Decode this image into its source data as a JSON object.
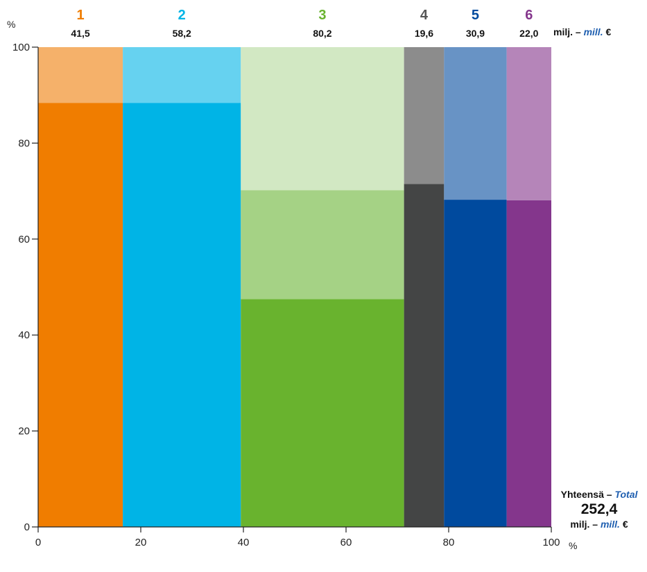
{
  "chart_data": {
    "type": "mekko",
    "x_unit": "%",
    "y_unit": "%",
    "xlim": [
      0,
      100
    ],
    "ylim": [
      0,
      100
    ],
    "x_ticks": [
      0,
      20,
      40,
      60,
      80,
      100
    ],
    "y_ticks": [
      0,
      20,
      40,
      60,
      80,
      100
    ],
    "value_unit_prefix": "milj. – ",
    "value_unit_italic": "mill.",
    "value_unit_suffix": " €",
    "categories": [
      {
        "label": "1",
        "value": 41.5,
        "value_label": "41,5",
        "x_start": 0,
        "x_end": 16.5,
        "label_color": "#f07d00",
        "segments": [
          {
            "top": 88.4,
            "color": "#f07d00"
          },
          {
            "top": 100,
            "color": "#f5b16a"
          }
        ]
      },
      {
        "label": "2",
        "value": 58.2,
        "value_label": "58,2",
        "x_start": 16.5,
        "x_end": 39.5,
        "label_color": "#00b4e6",
        "segments": [
          {
            "top": 88.4,
            "color": "#00b4e6"
          },
          {
            "top": 100,
            "color": "#66d2f0"
          }
        ]
      },
      {
        "label": "3",
        "value": 80.2,
        "value_label": "80,2",
        "x_start": 39.5,
        "x_end": 71.3,
        "label_color": "#69b32e",
        "segments": [
          {
            "top": 47.5,
            "color": "#69b32e"
          },
          {
            "top": 70.2,
            "color": "#a5d285"
          },
          {
            "top": 100,
            "color": "#d2e8c3"
          }
        ]
      },
      {
        "label": "4",
        "value": 19.6,
        "value_label": "19,6",
        "x_start": 71.3,
        "x_end": 79.1,
        "label_color": "#555555",
        "segments": [
          {
            "top": 71.5,
            "color": "#444545"
          },
          {
            "top": 100,
            "color": "#8c8c8c"
          }
        ]
      },
      {
        "label": "5",
        "value": 30.9,
        "value_label": "30,9",
        "x_start": 79.1,
        "x_end": 91.3,
        "label_color": "#004a9e",
        "segments": [
          {
            "top": 68.2,
            "color": "#004a9e"
          },
          {
            "top": 100,
            "color": "#6893c5"
          }
        ]
      },
      {
        "label": "6",
        "value": 22.0,
        "value_label": "22,0",
        "x_start": 91.3,
        "x_end": 100,
        "label_color": "#84368c",
        "segments": [
          {
            "top": 68.1,
            "color": "#84368c"
          },
          {
            "top": 100,
            "color": "#b585b9"
          }
        ]
      }
    ],
    "total": {
      "title_prefix": "Yhteensä – ",
      "title_italic": "Total",
      "value": 252.4,
      "value_label": "252,4"
    }
  }
}
